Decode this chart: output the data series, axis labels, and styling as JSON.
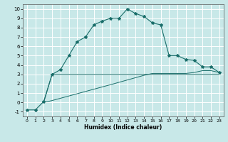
{
  "xlabel": "Humidex (Indice chaleur)",
  "background_color": "#c8e8e8",
  "grid_color": "#ffffff",
  "line_color": "#1a6e6a",
  "xlim": [
    -0.5,
    23.5
  ],
  "ylim": [
    -1.5,
    10.5
  ],
  "x_ticks": [
    0,
    1,
    2,
    3,
    4,
    5,
    6,
    7,
    8,
    9,
    10,
    11,
    12,
    13,
    14,
    15,
    16,
    17,
    18,
    19,
    20,
    21,
    22,
    23
  ],
  "y_ticks": [
    -1,
    0,
    1,
    2,
    3,
    4,
    5,
    6,
    7,
    8,
    9,
    10
  ],
  "curve1_x": [
    0,
    1,
    2,
    3,
    4,
    5,
    6,
    7,
    8,
    9,
    10,
    11,
    12,
    13,
    14,
    15,
    16,
    17,
    18,
    19,
    20,
    21,
    22,
    23
  ],
  "curve1_y": [
    -0.8,
    -0.8,
    0.1,
    3.0,
    3.5,
    5.0,
    6.5,
    7.0,
    8.3,
    8.7,
    9.0,
    9.0,
    10.0,
    9.5,
    9.2,
    8.5,
    8.3,
    5.0,
    5.0,
    4.6,
    4.5,
    3.8,
    3.8,
    3.2
  ],
  "curve2_x": [
    2,
    3,
    23
  ],
  "curve2_y": [
    0.0,
    3.0,
    3.0
  ],
  "curve3_x": [
    2,
    3,
    10,
    14,
    15,
    16,
    17,
    18,
    19,
    20,
    21,
    22,
    23
  ],
  "curve3_y": [
    0.0,
    0.2,
    1.9,
    2.9,
    3.1,
    3.1,
    3.1,
    3.1,
    3.1,
    3.2,
    3.4,
    3.4,
    3.2
  ]
}
